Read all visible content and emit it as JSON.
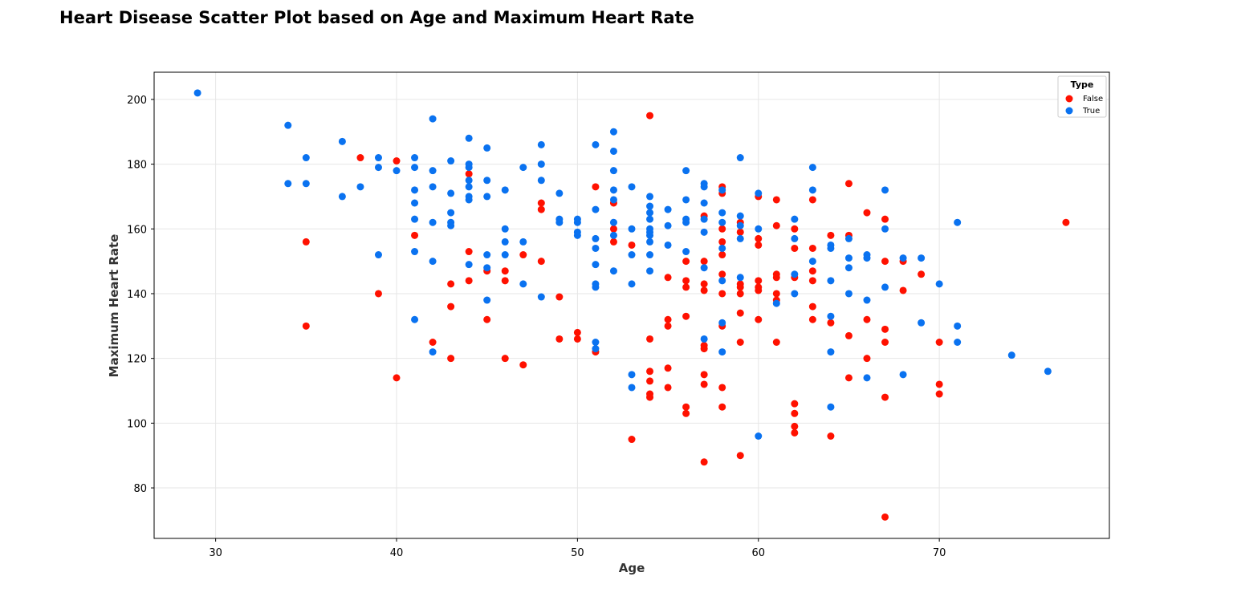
{
  "chart_data": {
    "type": "scatter",
    "title": "Heart Disease Scatter Plot based on Age and Maximum Heart Rate",
    "xlabel": "Age",
    "ylabel": "Maximum Heart Rate",
    "xlim": [
      26.6,
      79.4
    ],
    "ylim": [
      64.4,
      208.4
    ],
    "xticks": [
      30,
      40,
      50,
      60,
      70
    ],
    "yticks": [
      80,
      100,
      120,
      140,
      160,
      180,
      200
    ],
    "grid": true,
    "legend": {
      "title": "Type",
      "position": "top-right"
    },
    "series": [
      {
        "name": "False",
        "color": "#ff1100",
        "points": [
          [
            35,
            156
          ],
          [
            35,
            130
          ],
          [
            38,
            182
          ],
          [
            39,
            140
          ],
          [
            40,
            181
          ],
          [
            40,
            114
          ],
          [
            41,
            158
          ],
          [
            42,
            125
          ],
          [
            43,
            143
          ],
          [
            43,
            136
          ],
          [
            43,
            120
          ],
          [
            44,
            177
          ],
          [
            44,
            153
          ],
          [
            44,
            144
          ],
          [
            45,
            147
          ],
          [
            45,
            132
          ],
          [
            46,
            147
          ],
          [
            46,
            144
          ],
          [
            46,
            120
          ],
          [
            47,
            152
          ],
          [
            47,
            118
          ],
          [
            48,
            168
          ],
          [
            48,
            166
          ],
          [
            48,
            150
          ],
          [
            49,
            139
          ],
          [
            49,
            126
          ],
          [
            50,
            128
          ],
          [
            50,
            126
          ],
          [
            51,
            173
          ],
          [
            51,
            122
          ],
          [
            52,
            168
          ],
          [
            52,
            160
          ],
          [
            52,
            156
          ],
          [
            53,
            155
          ],
          [
            53,
            95
          ],
          [
            54,
            195
          ],
          [
            54,
            126
          ],
          [
            54,
            116
          ],
          [
            54,
            113
          ],
          [
            54,
            109
          ],
          [
            54,
            108
          ],
          [
            55,
            145
          ],
          [
            55,
            132
          ],
          [
            55,
            130
          ],
          [
            55,
            117
          ],
          [
            55,
            111
          ],
          [
            56,
            150
          ],
          [
            56,
            144
          ],
          [
            56,
            142
          ],
          [
            56,
            133
          ],
          [
            56,
            105
          ],
          [
            56,
            103
          ],
          [
            57,
            164
          ],
          [
            57,
            150
          ],
          [
            57,
            143
          ],
          [
            57,
            141
          ],
          [
            57,
            124
          ],
          [
            57,
            123
          ],
          [
            57,
            115
          ],
          [
            57,
            112
          ],
          [
            57,
            88
          ],
          [
            58,
            173
          ],
          [
            58,
            171
          ],
          [
            58,
            160
          ],
          [
            58,
            156
          ],
          [
            58,
            152
          ],
          [
            58,
            146
          ],
          [
            58,
            140
          ],
          [
            58,
            130
          ],
          [
            58,
            111
          ],
          [
            58,
            105
          ],
          [
            59,
            162
          ],
          [
            59,
            159
          ],
          [
            59,
            143
          ],
          [
            59,
            142
          ],
          [
            59,
            140
          ],
          [
            59,
            134
          ],
          [
            59,
            125
          ],
          [
            59,
            90
          ],
          [
            60,
            170
          ],
          [
            60,
            157
          ],
          [
            60,
            155
          ],
          [
            60,
            144
          ],
          [
            60,
            142
          ],
          [
            60,
            141
          ],
          [
            60,
            132
          ],
          [
            61,
            169
          ],
          [
            61,
            161
          ],
          [
            61,
            146
          ],
          [
            61,
            145
          ],
          [
            61,
            140
          ],
          [
            61,
            138
          ],
          [
            61,
            125
          ],
          [
            62,
            160
          ],
          [
            62,
            154
          ],
          [
            62,
            145
          ],
          [
            62,
            106
          ],
          [
            62,
            103
          ],
          [
            62,
            99
          ],
          [
            62,
            97
          ],
          [
            63,
            169
          ],
          [
            63,
            154
          ],
          [
            63,
            147
          ],
          [
            63,
            144
          ],
          [
            63,
            136
          ],
          [
            63,
            132
          ],
          [
            64,
            158
          ],
          [
            64,
            131
          ],
          [
            64,
            96
          ],
          [
            65,
            174
          ],
          [
            65,
            158
          ],
          [
            65,
            127
          ],
          [
            65,
            114
          ],
          [
            66,
            165
          ],
          [
            66,
            132
          ],
          [
            66,
            120
          ],
          [
            67,
            163
          ],
          [
            67,
            150
          ],
          [
            67,
            129
          ],
          [
            67,
            125
          ],
          [
            67,
            108
          ],
          [
            67,
            71
          ],
          [
            68,
            150
          ],
          [
            68,
            141
          ],
          [
            69,
            146
          ],
          [
            70,
            125
          ],
          [
            70,
            112
          ],
          [
            70,
            109
          ],
          [
            77,
            162
          ]
        ]
      },
      {
        "name": "True",
        "color": "#0a72f0",
        "points": [
          [
            29,
            202
          ],
          [
            34,
            192
          ],
          [
            34,
            174
          ],
          [
            35,
            182
          ],
          [
            35,
            174
          ],
          [
            37,
            187
          ],
          [
            37,
            170
          ],
          [
            38,
            173
          ],
          [
            39,
            182
          ],
          [
            39,
            179
          ],
          [
            39,
            152
          ],
          [
            40,
            178
          ],
          [
            41,
            182
          ],
          [
            41,
            179
          ],
          [
            41,
            172
          ],
          [
            41,
            168
          ],
          [
            41,
            163
          ],
          [
            41,
            153
          ],
          [
            41,
            132
          ],
          [
            42,
            194
          ],
          [
            42,
            178
          ],
          [
            42,
            173
          ],
          [
            42,
            162
          ],
          [
            42,
            150
          ],
          [
            42,
            122
          ],
          [
            43,
            181
          ],
          [
            43,
            171
          ],
          [
            43,
            165
          ],
          [
            43,
            162
          ],
          [
            43,
            161
          ],
          [
            44,
            188
          ],
          [
            44,
            180
          ],
          [
            44,
            179
          ],
          [
            44,
            175
          ],
          [
            44,
            173
          ],
          [
            44,
            170
          ],
          [
            44,
            169
          ],
          [
            44,
            149
          ],
          [
            45,
            185
          ],
          [
            45,
            175
          ],
          [
            45,
            170
          ],
          [
            45,
            152
          ],
          [
            45,
            148
          ],
          [
            45,
            138
          ],
          [
            46,
            172
          ],
          [
            46,
            160
          ],
          [
            46,
            156
          ],
          [
            46,
            152
          ],
          [
            47,
            179
          ],
          [
            47,
            156
          ],
          [
            47,
            143
          ],
          [
            48,
            186
          ],
          [
            48,
            180
          ],
          [
            48,
            175
          ],
          [
            48,
            139
          ],
          [
            49,
            171
          ],
          [
            49,
            163
          ],
          [
            49,
            162
          ],
          [
            50,
            163
          ],
          [
            50,
            162
          ],
          [
            50,
            159
          ],
          [
            50,
            158
          ],
          [
            51,
            186
          ],
          [
            51,
            166
          ],
          [
            51,
            157
          ],
          [
            51,
            154
          ],
          [
            51,
            149
          ],
          [
            51,
            143
          ],
          [
            51,
            142
          ],
          [
            51,
            125
          ],
          [
            51,
            123
          ],
          [
            52,
            190
          ],
          [
            52,
            184
          ],
          [
            52,
            178
          ],
          [
            52,
            172
          ],
          [
            52,
            169
          ],
          [
            52,
            162
          ],
          [
            52,
            158
          ],
          [
            52,
            147
          ],
          [
            53,
            173
          ],
          [
            53,
            160
          ],
          [
            53,
            152
          ],
          [
            53,
            143
          ],
          [
            53,
            115
          ],
          [
            53,
            111
          ],
          [
            54,
            170
          ],
          [
            54,
            167
          ],
          [
            54,
            165
          ],
          [
            54,
            163
          ],
          [
            54,
            160
          ],
          [
            54,
            159
          ],
          [
            54,
            158
          ],
          [
            54,
            156
          ],
          [
            54,
            152
          ],
          [
            54,
            147
          ],
          [
            55,
            166
          ],
          [
            55,
            161
          ],
          [
            55,
            155
          ],
          [
            56,
            178
          ],
          [
            56,
            169
          ],
          [
            56,
            163
          ],
          [
            56,
            162
          ],
          [
            56,
            153
          ],
          [
            57,
            174
          ],
          [
            57,
            173
          ],
          [
            57,
            168
          ],
          [
            57,
            163
          ],
          [
            57,
            159
          ],
          [
            57,
            148
          ],
          [
            57,
            126
          ],
          [
            58,
            172
          ],
          [
            58,
            165
          ],
          [
            58,
            162
          ],
          [
            58,
            154
          ],
          [
            58,
            144
          ],
          [
            58,
            131
          ],
          [
            58,
            122
          ],
          [
            59,
            182
          ],
          [
            59,
            164
          ],
          [
            59,
            161
          ],
          [
            59,
            157
          ],
          [
            59,
            145
          ],
          [
            60,
            171
          ],
          [
            60,
            160
          ],
          [
            60,
            96
          ],
          [
            61,
            137
          ],
          [
            62,
            163
          ],
          [
            62,
            157
          ],
          [
            62,
            146
          ],
          [
            62,
            140
          ],
          [
            63,
            179
          ],
          [
            63,
            172
          ],
          [
            63,
            150
          ],
          [
            64,
            155
          ],
          [
            64,
            154
          ],
          [
            64,
            144
          ],
          [
            64,
            133
          ],
          [
            64,
            122
          ],
          [
            64,
            105
          ],
          [
            65,
            157
          ],
          [
            65,
            151
          ],
          [
            65,
            148
          ],
          [
            65,
            140
          ],
          [
            66,
            152
          ],
          [
            66,
            151
          ],
          [
            66,
            138
          ],
          [
            66,
            114
          ],
          [
            67,
            172
          ],
          [
            67,
            160
          ],
          [
            67,
            142
          ],
          [
            68,
            151
          ],
          [
            68,
            115
          ],
          [
            69,
            151
          ],
          [
            69,
            131
          ],
          [
            70,
            143
          ],
          [
            71,
            162
          ],
          [
            71,
            130
          ],
          [
            71,
            125
          ],
          [
            74,
            121
          ],
          [
            76,
            116
          ]
        ]
      }
    ]
  }
}
